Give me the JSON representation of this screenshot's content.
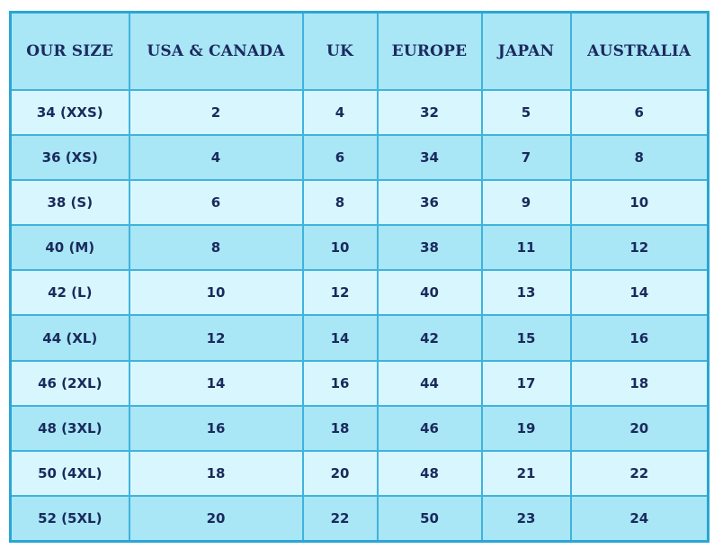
{
  "table": {
    "headers": [
      "OUR SIZE",
      "USA & CANADA",
      "UK",
      "EUROPE",
      "JAPAN",
      "AUSTRALIA"
    ],
    "rows": [
      [
        "34 (XXS)",
        "2",
        "4",
        "32",
        "5",
        "6"
      ],
      [
        "36 (XS)",
        "4",
        "6",
        "34",
        "7",
        "8"
      ],
      [
        "38 (S)",
        "6",
        "8",
        "36",
        "9",
        "10"
      ],
      [
        "40 (M)",
        "8",
        "10",
        "38",
        "11",
        "12"
      ],
      [
        "42 (L)",
        "10",
        "12",
        "40",
        "13",
        "14"
      ],
      [
        "44 (XL)",
        "12",
        "14",
        "42",
        "15",
        "16"
      ],
      [
        "46 (2XL)",
        "14",
        "16",
        "44",
        "17",
        "18"
      ],
      [
        "48 (3XL)",
        "16",
        "18",
        "46",
        "19",
        "20"
      ],
      [
        "50 (4XL)",
        "18",
        "20",
        "48",
        "21",
        "22"
      ],
      [
        "52 (5XL)",
        "20",
        "22",
        "50",
        "23",
        "24"
      ]
    ]
  },
  "colors": {
    "border": "#3fb3dc",
    "header_bg": "#a9e6f6",
    "row_light": "#d8f6fd",
    "row_dark": "#a9e6f6",
    "text": "#1a2a5c"
  }
}
